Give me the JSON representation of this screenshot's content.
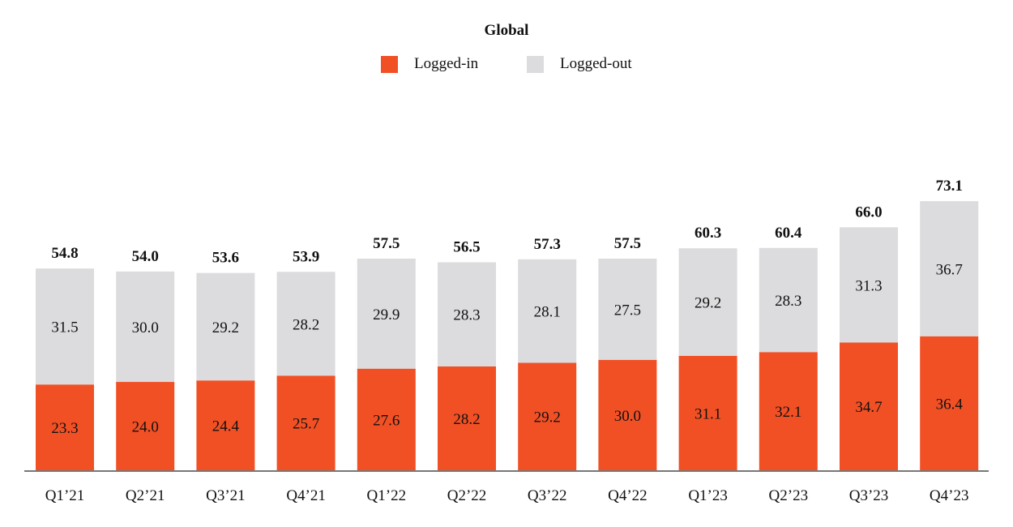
{
  "chart_data": {
    "type": "bar",
    "stacked": true,
    "title": "Global",
    "categories": [
      "Q1’21",
      "Q2’21",
      "Q3’21",
      "Q4’21",
      "Q1’22",
      "Q2’22",
      "Q3’22",
      "Q4’22",
      "Q1’23",
      "Q2’23",
      "Q3’23",
      "Q4’23"
    ],
    "series": [
      {
        "name": "Logged-in",
        "color": "#f15025",
        "values": [
          23.3,
          24.0,
          24.4,
          25.7,
          27.6,
          28.2,
          29.2,
          30.0,
          31.1,
          32.1,
          34.7,
          36.4
        ]
      },
      {
        "name": "Logged-out",
        "color": "#dcdcde",
        "values": [
          31.5,
          30.0,
          29.2,
          28.2,
          29.9,
          28.3,
          28.1,
          27.5,
          29.2,
          28.3,
          31.3,
          36.7
        ]
      }
    ],
    "totals": [
      "54.8",
      "54.0",
      "53.6",
      "53.9",
      "57.5",
      "56.5",
      "57.3",
      "57.5",
      "60.3",
      "60.4",
      "66.0",
      "73.1"
    ],
    "legend_position": "top-center",
    "grid": false,
    "y_axis_visible": false,
    "ylim": [
      0,
      75
    ]
  }
}
